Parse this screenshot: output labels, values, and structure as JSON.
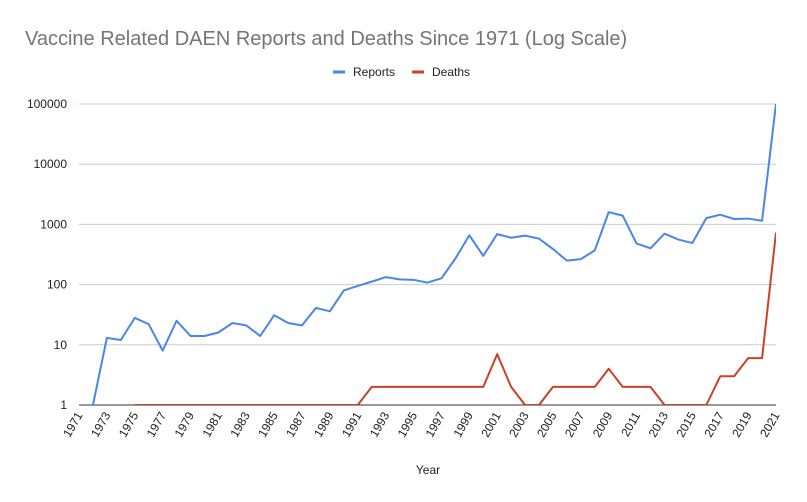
{
  "chart_data": {
    "type": "line",
    "title": "Vaccine Related DAEN Reports and Deaths Since 1971 (Log Scale)",
    "xlabel": "Year",
    "ylabel": "",
    "yscale": "log",
    "ylim": [
      1,
      100000
    ],
    "yticks": [
      "1",
      "10",
      "100",
      "1000",
      "10000",
      "100000"
    ],
    "xlim": [
      1971,
      2021
    ],
    "xticks": [
      "1971",
      "1973",
      "1975",
      "1977",
      "1979",
      "1981",
      "1983",
      "1985",
      "1987",
      "1989",
      "1991",
      "1993",
      "1995",
      "1997",
      "1999",
      "2001",
      "2003",
      "2005",
      "2007",
      "2009",
      "2011",
      "2013",
      "2015",
      "2017",
      "2019",
      "2021"
    ],
    "grid": true,
    "legend_position": "top-center",
    "x": [
      1971,
      1972,
      1973,
      1974,
      1975,
      1976,
      1977,
      1978,
      1979,
      1980,
      1981,
      1982,
      1983,
      1984,
      1985,
      1986,
      1987,
      1988,
      1989,
      1990,
      1991,
      1992,
      1993,
      1994,
      1995,
      1996,
      1997,
      1998,
      1999,
      2000,
      2001,
      2002,
      2003,
      2004,
      2005,
      2006,
      2007,
      2008,
      2009,
      2010,
      2011,
      2012,
      2013,
      2014,
      2015,
      2016,
      2017,
      2018,
      2019,
      2020,
      2021
    ],
    "series": [
      {
        "name": "Reports",
        "color": "#4a86e8",
        "values": [
          0.3,
          1,
          13,
          12,
          28,
          22,
          8,
          25,
          14,
          14,
          16,
          23,
          21,
          14,
          31,
          23,
          21,
          41,
          36,
          80,
          95,
          112,
          133,
          122,
          120,
          108,
          127,
          270,
          660,
          300,
          690,
          600,
          650,
          580,
          390,
          250,
          265,
          370,
          1600,
          1400,
          480,
          400,
          700,
          560,
          490,
          1270,
          1450,
          1230,
          1250,
          1150,
          100000
        ]
      },
      {
        "name": "Deaths",
        "color": "#cc4125",
        "values": [
          null,
          null,
          null,
          null,
          1,
          1,
          1,
          1,
          1,
          1,
          1,
          1,
          1,
          1,
          1,
          1,
          1,
          1,
          1,
          1,
          1,
          2,
          2,
          2,
          2,
          2,
          2,
          2,
          2,
          2,
          7,
          2,
          1,
          1,
          2,
          2,
          2,
          2,
          4,
          2,
          2,
          2,
          1,
          1,
          1,
          1,
          3,
          3,
          6,
          6,
          730
        ]
      }
    ]
  }
}
